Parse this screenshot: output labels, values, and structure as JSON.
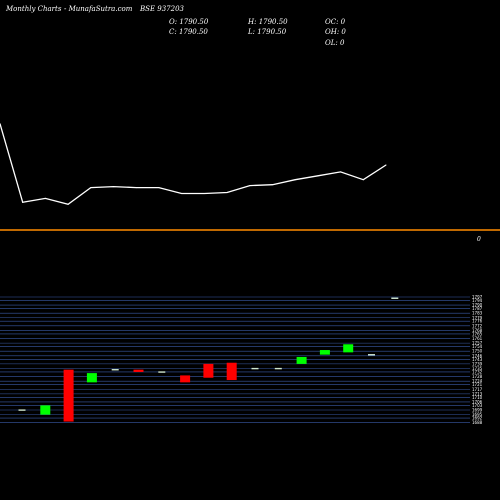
{
  "header": {
    "brand": "Monthly Charts",
    "site": "- MunafaSutra.com",
    "symbol": "BSE 937203",
    "open": "O: 1790.50",
    "close": "C: 1790.50",
    "high": "H: 1790.50",
    "low": "L: 1790.50",
    "oc": "OC: 0",
    "oh": "OH: 0",
    "ol": "OL: 0"
  },
  "colors": {
    "background": "#000000",
    "line": "#ffffff",
    "divider": "#ff8c00",
    "bull": "#00ff00",
    "bear": "#ff0000",
    "grid": "#3a5aa6",
    "flat": "#cfe6cf"
  },
  "chart_data": [
    {
      "type": "line",
      "x": [
        1,
        2,
        3,
        4,
        5,
        6,
        7,
        8,
        9,
        10,
        11,
        12,
        13,
        14,
        15,
        16,
        17,
        18
      ],
      "values": [
        1798,
        1718,
        1722,
        1716,
        1733,
        1734,
        1733,
        1733,
        1727,
        1727,
        1728,
        1735,
        1736,
        1741,
        1745,
        1749,
        1741,
        1756
      ],
      "ylim": [
        1700,
        1810
      ]
    },
    {
      "type": "candlestick",
      "zero_label": "0",
      "ylim": [
        1686,
        1797
      ],
      "y_ticks": [
        1797,
        1794,
        1790,
        1787,
        1783,
        1779,
        1776,
        1772,
        1768,
        1765,
        1761,
        1757,
        1754,
        1750,
        1746,
        1743,
        1739,
        1735,
        1732,
        1728,
        1724,
        1721,
        1717,
        1713,
        1710,
        1706,
        1703,
        1699,
        1695,
        1692,
        1688
      ],
      "candles": [
        {
          "x": 1,
          "open": 1699,
          "close": 1699,
          "dir": "flat"
        },
        {
          "x": 2,
          "open": 1695,
          "close": 1703,
          "dir": "up"
        },
        {
          "x": 3,
          "open": 1734,
          "close": 1689,
          "dir": "down"
        },
        {
          "x": 4,
          "open": 1723,
          "close": 1731,
          "dir": "up"
        },
        {
          "x": 5,
          "open": 1734,
          "close": 1733,
          "dir": "down"
        },
        {
          "x": 6,
          "open": 1734,
          "close": 1732,
          "dir": "down"
        },
        {
          "x": 7,
          "open": 1732,
          "close": 1732,
          "dir": "flat"
        },
        {
          "x": 8,
          "open": 1729,
          "close": 1723,
          "dir": "down"
        },
        {
          "x": 9,
          "open": 1739,
          "close": 1727,
          "dir": "down"
        },
        {
          "x": 10,
          "open": 1740,
          "close": 1725,
          "dir": "down"
        },
        {
          "x": 11,
          "open": 1735,
          "close": 1735,
          "dir": "flat"
        },
        {
          "x": 12,
          "open": 1735,
          "close": 1735,
          "dir": "flat"
        },
        {
          "x": 13,
          "open": 1739,
          "close": 1745,
          "dir": "up"
        },
        {
          "x": 14,
          "open": 1747,
          "close": 1751,
          "dir": "up"
        },
        {
          "x": 15,
          "open": 1749,
          "close": 1756,
          "dir": "up"
        },
        {
          "x": 16,
          "open": 1747,
          "close": 1747,
          "dir": "flat"
        },
        {
          "x": 17,
          "open": 1796,
          "close": 1796,
          "dir": "flat"
        }
      ]
    }
  ]
}
